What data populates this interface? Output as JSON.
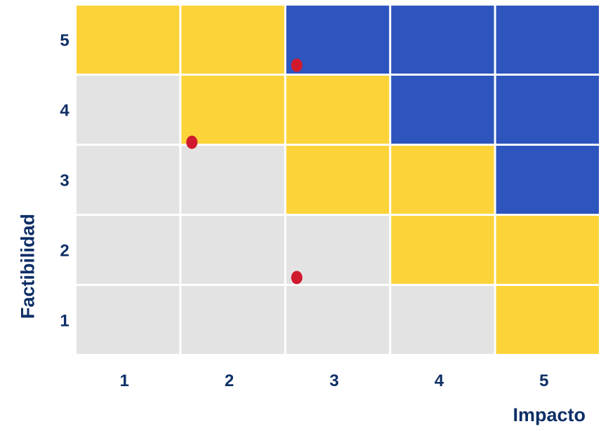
{
  "chart_data": {
    "type": "heatmap",
    "title": "",
    "xlabel": "Impacto",
    "ylabel": "Factibilidad",
    "x_categories": [
      "1",
      "2",
      "3",
      "4",
      "5"
    ],
    "y_categories": [
      "1",
      "2",
      "3",
      "4",
      "5"
    ],
    "grid": true,
    "legend": "none",
    "colors": {
      "low": "#e3e3e3",
      "medium": "#fdd33a",
      "high": "#2e55be",
      "point": "#d1192d",
      "label": "#0e2f66",
      "gridline": "#ffffff"
    },
    "cells": [
      {
        "y": 5,
        "levels": [
          "medium",
          "medium",
          "high",
          "high",
          "high"
        ]
      },
      {
        "y": 4,
        "levels": [
          "low",
          "medium",
          "medium",
          "high",
          "high"
        ]
      },
      {
        "y": 3,
        "levels": [
          "low",
          "low",
          "medium",
          "medium",
          "high"
        ]
      },
      {
        "y": 2,
        "levels": [
          "low",
          "low",
          "low",
          "medium",
          "medium"
        ]
      },
      {
        "y": 1,
        "levels": [
          "low",
          "low",
          "low",
          "low",
          "medium"
        ]
      }
    ],
    "points": [
      {
        "x": 2.6,
        "y": 4.65
      },
      {
        "x": 1.6,
        "y": 3.55
      },
      {
        "x": 2.6,
        "y": 1.62
      }
    ]
  }
}
